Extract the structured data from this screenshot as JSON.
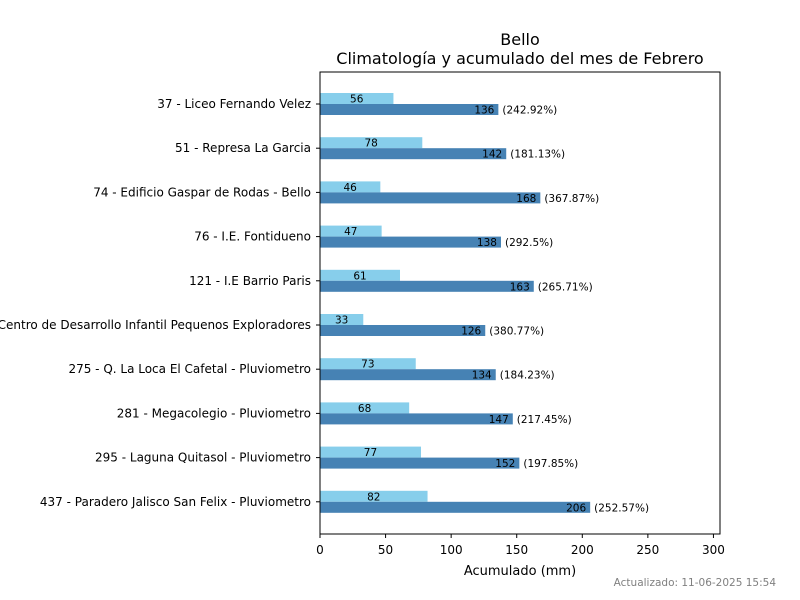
{
  "chart_data": {
    "type": "bar",
    "orientation": "horizontal",
    "title": "Bello",
    "subtitle": "Climatología y acumulado del mes de Febrero",
    "xlabel": "Acumulado (mm)",
    "ylabel": "",
    "xlim": [
      0,
      305
    ],
    "xticks": [
      0,
      50,
      100,
      150,
      200,
      250,
      300
    ],
    "grid": false,
    "colors": {
      "climatology": "#87ceeb",
      "accumulated": "#4682b4"
    },
    "categories": [
      "37 - Liceo Fernando Velez",
      "51 - Represa La Garcia",
      "74 - Edificio Gaspar de Rodas - Bello",
      "76 - I.E. Fontidueno",
      "121 - I.E Barrio Paris",
      "Centro de Desarrollo Infantil Pequenos Exploradores",
      "275 - Q. La Loca El Cafetal - Pluviometro",
      "281 - Megacolegio - Pluviometro",
      "295 - Laguna Quitasol - Pluviometro",
      "437 - Paradero Jalisco San Felix - Pluviometro"
    ],
    "series": [
      {
        "values": [
          56,
          78,
          46,
          47,
          61,
          33,
          73,
          68,
          77,
          82
        ]
      },
      {
        "values": [
          136,
          142,
          168,
          138,
          163,
          126,
          134,
          147,
          152,
          206
        ],
        "percent_labels": [
          "(242.92%)",
          "(181.13%)",
          "(367.87%)",
          "(292.5%)",
          "(265.71%)",
          "(380.77%)",
          "(184.23%)",
          "(217.45%)",
          "(197.85%)",
          "(252.57%)"
        ]
      }
    ]
  },
  "footer": {
    "updated": "Actualizado: 11-06-2025 15:54"
  }
}
